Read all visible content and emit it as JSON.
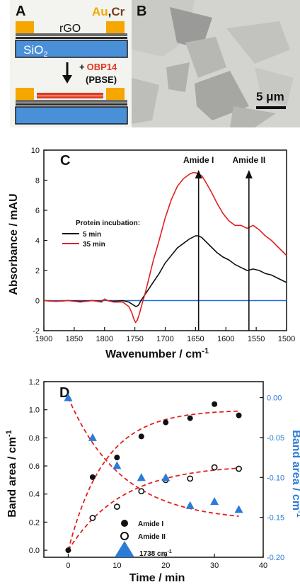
{
  "panel_a": {
    "label": "A",
    "au": "Au",
    "comma": ",",
    "cr": "Cr",
    "rgo": "rGO",
    "sio2": "SiO",
    "sio2_sub": "2",
    "plus": "+",
    "obp": "OBP14",
    "pbse": "(PBSE)"
  },
  "panel_b": {
    "label": "B",
    "scale_text": "5 μm"
  },
  "colors": {
    "gold": "#f5a700",
    "cr_brown": "#7a3d1d",
    "substrate_blue": "#4a90d9",
    "protein_red": "#e03a20",
    "series_black": "#111111",
    "series_red": "#e02020",
    "baseline_blue": "#1e6fd9",
    "band_blue": "#2b7bd8"
  },
  "chart_data": [
    {
      "type": "line",
      "panel_label": "C",
      "xlabel": "Wavenumber / cm",
      "xlabel_sup": "-1",
      "ylabel": "Absorbance / mAU",
      "xlim": [
        1900,
        1500
      ],
      "ylim": [
        -2,
        10
      ],
      "x_ticks": [
        1900,
        1850,
        1800,
        1750,
        1700,
        1650,
        1600,
        1550,
        1500
      ],
      "y_ticks": [
        -2,
        0,
        2,
        4,
        6,
        8,
        10
      ],
      "legend_title": "Protein incubation:",
      "annotations": [
        {
          "text": "Amide I",
          "x": 1645
        },
        {
          "text": "Amide II",
          "x": 1562
        }
      ],
      "baseline": 0,
      "series": [
        {
          "name": "5 min",
          "color": "#111111",
          "x": [
            1900,
            1880,
            1860,
            1840,
            1820,
            1805,
            1800,
            1795,
            1785,
            1770,
            1760,
            1752,
            1748,
            1744,
            1740,
            1735,
            1730,
            1720,
            1710,
            1700,
            1690,
            1680,
            1670,
            1660,
            1655,
            1650,
            1645,
            1640,
            1635,
            1625,
            1615,
            1605,
            1595,
            1585,
            1575,
            1565,
            1555,
            1545,
            1535,
            1525,
            1515,
            1505,
            1500
          ],
          "y": [
            0,
            -0.05,
            0,
            -0.05,
            0,
            -0.05,
            0.1,
            0,
            -0.05,
            0,
            -0.1,
            -0.3,
            -0.4,
            -0.3,
            0,
            0.3,
            0.6,
            1.2,
            1.8,
            2.5,
            3.0,
            3.5,
            3.8,
            4.1,
            4.2,
            4.3,
            4.3,
            4.2,
            4.0,
            3.6,
            3.2,
            2.9,
            2.7,
            2.4,
            2.2,
            2.0,
            2.1,
            2.0,
            1.8,
            1.7,
            1.5,
            1.3,
            1.2
          ]
        },
        {
          "name": "35 min",
          "color": "#e02020",
          "x": [
            1900,
            1880,
            1860,
            1840,
            1820,
            1805,
            1800,
            1795,
            1785,
            1770,
            1760,
            1755,
            1752,
            1749,
            1746,
            1742,
            1738,
            1733,
            1728,
            1720,
            1710,
            1700,
            1690,
            1680,
            1670,
            1660,
            1655,
            1650,
            1645,
            1640,
            1635,
            1625,
            1615,
            1605,
            1595,
            1585,
            1575,
            1565,
            1555,
            1545,
            1535,
            1525,
            1515,
            1505,
            1500
          ],
          "y": [
            0,
            -0.05,
            0,
            -0.1,
            0,
            -0.1,
            0.1,
            0,
            -0.1,
            -0.1,
            -0.4,
            -0.8,
            -1.2,
            -1.45,
            -1.3,
            -0.8,
            -0.2,
            0.5,
            1.3,
            2.6,
            4.0,
            5.5,
            6.7,
            7.6,
            8.1,
            8.4,
            8.5,
            8.5,
            8.4,
            8.3,
            8.0,
            7.3,
            6.5,
            5.8,
            5.3,
            5.0,
            5.0,
            4.8,
            5.0,
            4.7,
            4.3,
            4.0,
            3.6,
            3.2,
            3.0
          ]
        }
      ]
    },
    {
      "type": "scatter",
      "panel_label": "D",
      "xlabel": "Time / min",
      "ylabel": "Band area / cm",
      "ylabel_sup": "-1",
      "y2label": "Band area / cm",
      "y2label_sup": "-1",
      "xlim": [
        -5,
        40
      ],
      "ylim": [
        -0.05,
        1.2
      ],
      "y2lim": [
        -0.2,
        0.02
      ],
      "x_ticks": [
        0,
        10,
        20,
        30,
        40
      ],
      "y_ticks": [
        0.0,
        0.2,
        0.4,
        0.6,
        0.8,
        1.0,
        1.2
      ],
      "y2_ticks": [
        0.0,
        -0.05,
        -0.1,
        -0.15,
        -0.2
      ],
      "series": [
        {
          "name": "Amide I",
          "marker": "filled-circle",
          "axis": "left",
          "x": [
            0,
            5,
            10,
            15,
            20,
            25,
            30,
            35
          ],
          "y": [
            0.0,
            0.52,
            0.66,
            0.81,
            0.91,
            0.94,
            1.04,
            0.96
          ]
        },
        {
          "name": "Amide II",
          "marker": "open-circle",
          "axis": "left",
          "x": [
            5,
            10,
            15,
            20,
            25,
            30,
            35
          ],
          "y": [
            0.23,
            0.31,
            0.42,
            0.5,
            0.51,
            0.59,
            0.58
          ]
        },
        {
          "name": "1738 cm",
          "name_sup": "-1",
          "marker": "triangle",
          "axis": "right",
          "x": [
            0,
            5,
            10,
            15,
            20,
            25,
            30,
            35
          ],
          "y": [
            0.0,
            -0.05,
            -0.085,
            -0.1,
            -0.1,
            -0.135,
            -0.13,
            -0.14
          ]
        }
      ]
    }
  ]
}
